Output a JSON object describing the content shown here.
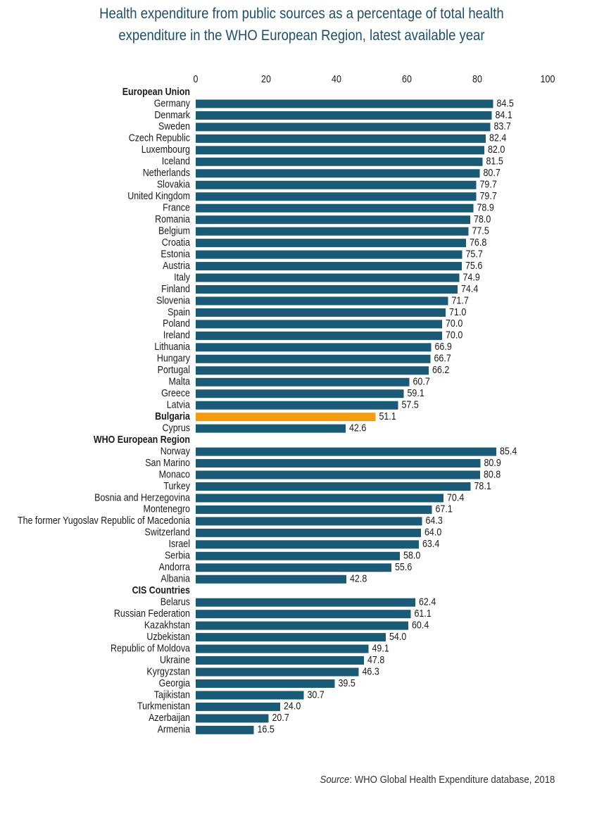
{
  "colors": {
    "bar": "#1b5a77",
    "highlight": "#f39c12",
    "title": "#1f4e6a",
    "text": "#1a1a1a"
  },
  "source": {
    "label": "Source",
    "text": ": WHO Global Health Expenditure database, 2018"
  },
  "chart_data": {
    "type": "bar",
    "orientation": "horizontal",
    "title_lines": [
      "Health expenditure from public sources as a percentage of total health",
      "expenditure in the WHO European Region, latest available year"
    ],
    "xlim": [
      0,
      100
    ],
    "x_ticks": [
      0,
      20,
      40,
      60,
      80,
      100
    ],
    "x_axis_position": "top",
    "grid": false,
    "legend": "none",
    "highlight": "Bulgaria",
    "groups": [
      {
        "name": "European Union",
        "items": [
          {
            "label": "Germany",
            "value": 84.5
          },
          {
            "label": "Denmark",
            "value": 84.1
          },
          {
            "label": "Sweden",
            "value": 83.7
          },
          {
            "label": "Czech Republic",
            "value": 82.4
          },
          {
            "label": "Luxembourg",
            "value": 82.0
          },
          {
            "label": "Iceland",
            "value": 81.5
          },
          {
            "label": "Netherlands",
            "value": 80.7
          },
          {
            "label": "Slovakia",
            "value": 79.7
          },
          {
            "label": "United Kingdom",
            "value": 79.7
          },
          {
            "label": "France",
            "value": 78.9
          },
          {
            "label": "Romania",
            "value": 78.0
          },
          {
            "label": "Belgium",
            "value": 77.5
          },
          {
            "label": "Croatia",
            "value": 76.8
          },
          {
            "label": "Estonia",
            "value": 75.7
          },
          {
            "label": "Austria",
            "value": 75.6
          },
          {
            "label": "Italy",
            "value": 74.9
          },
          {
            "label": "Finland",
            "value": 74.4
          },
          {
            "label": "Slovenia",
            "value": 71.7
          },
          {
            "label": "Spain",
            "value": 71.0
          },
          {
            "label": "Poland",
            "value": 70.0
          },
          {
            "label": "Ireland",
            "value": 70.0
          },
          {
            "label": "Lithuania",
            "value": 66.9
          },
          {
            "label": "Hungary",
            "value": 66.7
          },
          {
            "label": "Portugal",
            "value": 66.2
          },
          {
            "label": "Malta",
            "value": 60.7
          },
          {
            "label": "Greece",
            "value": 59.1
          },
          {
            "label": "Latvia",
            "value": 57.5
          },
          {
            "label": "Bulgaria",
            "value": 51.1
          },
          {
            "label": "Cyprus",
            "value": 42.6
          }
        ]
      },
      {
        "name": "WHO European Region",
        "items": [
          {
            "label": "Norway",
            "value": 85.4
          },
          {
            "label": "San Marino",
            "value": 80.9
          },
          {
            "label": "Monaco",
            "value": 80.8
          },
          {
            "label": "Turkey",
            "value": 78.1
          },
          {
            "label": "Bosnia and Herzegovina",
            "value": 70.4
          },
          {
            "label": "Montenegro",
            "value": 67.1
          },
          {
            "label": "The former Yugoslav Republic of Macedonia",
            "value": 64.3
          },
          {
            "label": "Switzerland",
            "value": 64.0
          },
          {
            "label": "Israel",
            "value": 63.4
          },
          {
            "label": "Serbia",
            "value": 58.0
          },
          {
            "label": "Andorra",
            "value": 55.6
          },
          {
            "label": "Albania",
            "value": 42.8
          }
        ]
      },
      {
        "name": "CIS Countries",
        "items": [
          {
            "label": "Belarus",
            "value": 62.4
          },
          {
            "label": "Russian Federation",
            "value": 61.1
          },
          {
            "label": "Kazakhstan",
            "value": 60.4
          },
          {
            "label": "Uzbekistan",
            "value": 54.0
          },
          {
            "label": "Republic of Moldova",
            "value": 49.1
          },
          {
            "label": "Ukraine",
            "value": 47.8
          },
          {
            "label": "Kyrgyzstan",
            "value": 46.3
          },
          {
            "label": "Georgia",
            "value": 39.5
          },
          {
            "label": "Tajikistan",
            "value": 30.7
          },
          {
            "label": "Turkmenistan",
            "value": 24.0
          },
          {
            "label": "Azerbaijan",
            "value": 20.7
          },
          {
            "label": "Armenia",
            "value": 16.5
          }
        ]
      }
    ]
  }
}
